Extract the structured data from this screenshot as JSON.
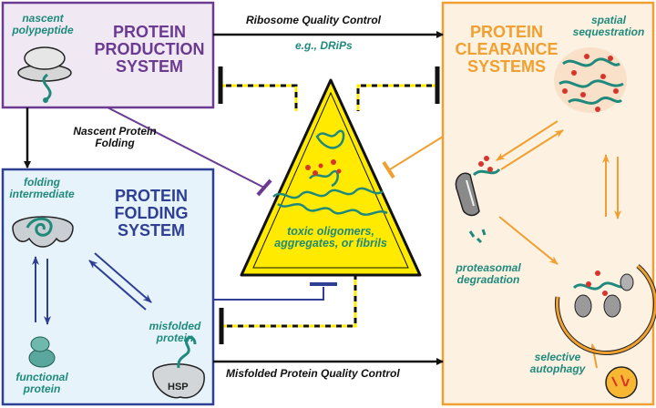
{
  "production": {
    "title_lines": [
      "PROTEIN",
      "PRODUCTION",
      "SYSTEM"
    ],
    "nascent_label": [
      "nascent",
      "polypeptide"
    ],
    "color": "#6b3a91",
    "fill": "#f0e9f3"
  },
  "folding": {
    "title_lines": [
      "PROTEIN",
      "FOLDING",
      "SYSTEM"
    ],
    "intermediate_label": [
      "folding",
      "intermediate"
    ],
    "functional_label": [
      "functional",
      "protein"
    ],
    "misfolded_label": [
      "misfolded",
      "protein"
    ],
    "hsp_label": "HSP",
    "color": "#2e3f94",
    "fill": "#e7f3fb"
  },
  "clearance": {
    "title_lines": [
      "PROTEIN",
      "CLEARANCE",
      "SYSTEMS"
    ],
    "sequestration_label": [
      "spatial",
      "sequestration"
    ],
    "proteasomal_label": [
      "proteasomal",
      "degradation"
    ],
    "autophagy_label": [
      "selective",
      "autophagy"
    ],
    "color": "#f0a030",
    "fill": "#fdf1e2"
  },
  "center": {
    "toxic_label": [
      "toxic oligomers,",
      "aggregates, or fibrils"
    ],
    "triangle_fill": "#ffea00"
  },
  "arrows": {
    "ribosome_qc": "Ribosome Quality Control",
    "drips": "e.g., DRiPs",
    "nascent_folding": [
      "Nascent Protein",
      "Folding"
    ],
    "misfolded_qc": "Misfolded Protein Quality Control"
  },
  "colors": {
    "teal": "#1f8a7c",
    "grey": "#8a8a8a",
    "red": "#d9342b"
  }
}
